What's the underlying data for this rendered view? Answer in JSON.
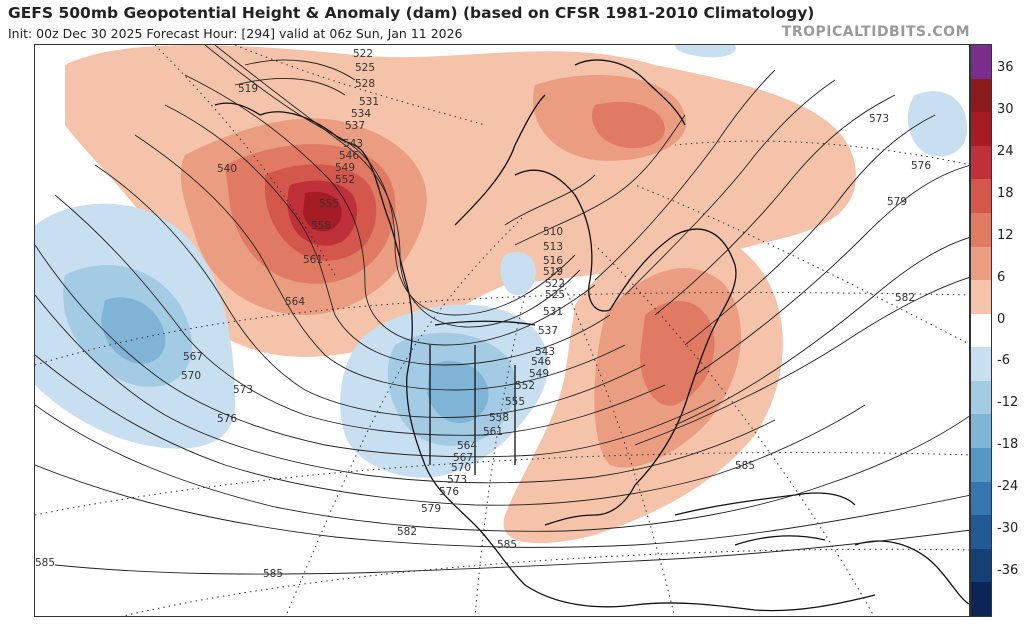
{
  "header": {
    "title": "GEFS 500mb Geopotential Height & Anomaly (dam) (based on CFSR 1981-2010 Climatology)",
    "subtitle": "Init: 00z Dec 30 2025   Forecast Hour: [294]   valid at 06z Sun, Jan 11 2026",
    "brand": "TROPICALTIDBITS.COM"
  },
  "colorbar": {
    "ticks": [
      "36",
      "30",
      "24",
      "18",
      "12",
      "6",
      "0",
      "-6",
      "-12",
      "-18",
      "-24",
      "-30",
      "-36"
    ],
    "colors": [
      "#7b2d8e",
      "#8b1a1a",
      "#a51c24",
      "#c0303a",
      "#d4574c",
      "#e07a63",
      "#eb9d82",
      "#f5c3aa",
      "#ffffff",
      "#c7dff0",
      "#a3cbe4",
      "#7fb4d7",
      "#5597c6",
      "#3576b0",
      "#215b95",
      "#153f77",
      "#0b2656"
    ]
  },
  "map": {
    "anomalies": [
      {
        "name": "alaska-ridge",
        "sign": "positive",
        "level": "30"
      },
      {
        "name": "arctic-ridge",
        "sign": "positive",
        "level": "12"
      },
      {
        "name": "east-us-ridge",
        "sign": "positive",
        "level": "12"
      },
      {
        "name": "pacific-trough",
        "sign": "negative",
        "level": "-12"
      },
      {
        "name": "west-us-trough",
        "sign": "negative",
        "level": "-12"
      },
      {
        "name": "atlantic-trough",
        "sign": "negative",
        "level": "-6"
      }
    ],
    "contour_labels": [
      {
        "text": "522",
        "loc": "alaska-north"
      },
      {
        "text": "525",
        "loc": "alaska-north"
      },
      {
        "text": "528",
        "loc": "alaska-north"
      },
      {
        "text": "531",
        "loc": "alaska-north"
      },
      {
        "text": "534",
        "loc": "alaska-north"
      },
      {
        "text": "537",
        "loc": "alaska-north"
      },
      {
        "text": "543",
        "loc": "alaska"
      },
      {
        "text": "546",
        "loc": "alaska"
      },
      {
        "text": "549",
        "loc": "alaska"
      },
      {
        "text": "552",
        "loc": "alaska"
      },
      {
        "text": "555",
        "loc": "gulf-of-alaska"
      },
      {
        "text": "558",
        "loc": "gulf-of-alaska"
      },
      {
        "text": "561",
        "loc": "gulf-of-alaska"
      },
      {
        "text": "564",
        "loc": "gulf-of-alaska"
      },
      {
        "text": "519",
        "loc": "bering"
      },
      {
        "text": "540",
        "loc": "bering"
      },
      {
        "text": "567",
        "loc": "central-pacific"
      },
      {
        "text": "570",
        "loc": "central-pacific"
      },
      {
        "text": "573",
        "loc": "central-pacific"
      },
      {
        "text": "576",
        "loc": "central-pacific"
      },
      {
        "text": "510",
        "loc": "hudson-bay"
      },
      {
        "text": "513",
        "loc": "hudson-bay"
      },
      {
        "text": "516",
        "loc": "hudson-bay"
      },
      {
        "text": "519",
        "loc": "hudson-bay"
      },
      {
        "text": "522",
        "loc": "hudson-bay"
      },
      {
        "text": "525",
        "loc": "hudson-bay"
      },
      {
        "text": "531",
        "loc": "hudson-bay"
      },
      {
        "text": "537",
        "loc": "central-canada"
      },
      {
        "text": "543",
        "loc": "plains"
      },
      {
        "text": "546",
        "loc": "plains"
      },
      {
        "text": "549",
        "loc": "plains"
      },
      {
        "text": "552",
        "loc": "plains"
      },
      {
        "text": "555",
        "loc": "plains"
      },
      {
        "text": "558",
        "loc": "plains"
      },
      {
        "text": "561",
        "loc": "plains"
      },
      {
        "text": "564",
        "loc": "southwest"
      },
      {
        "text": "567",
        "loc": "southwest"
      },
      {
        "text": "570",
        "loc": "southwest"
      },
      {
        "text": "573",
        "loc": "southwest"
      },
      {
        "text": "576",
        "loc": "southwest"
      },
      {
        "text": "579",
        "loc": "baja"
      },
      {
        "text": "582",
        "loc": "east-pacific"
      },
      {
        "text": "585",
        "loc": "mexico"
      },
      {
        "text": "585",
        "loc": "tropical-pacific"
      },
      {
        "text": "585",
        "loc": "tropical-pacific-west"
      },
      {
        "text": "585",
        "loc": "caribbean"
      },
      {
        "text": "582",
        "loc": "atlantic"
      },
      {
        "text": "579",
        "loc": "atlantic-north"
      },
      {
        "text": "576",
        "loc": "atlantic-north"
      },
      {
        "text": "573",
        "loc": "atlantic-north"
      }
    ]
  }
}
